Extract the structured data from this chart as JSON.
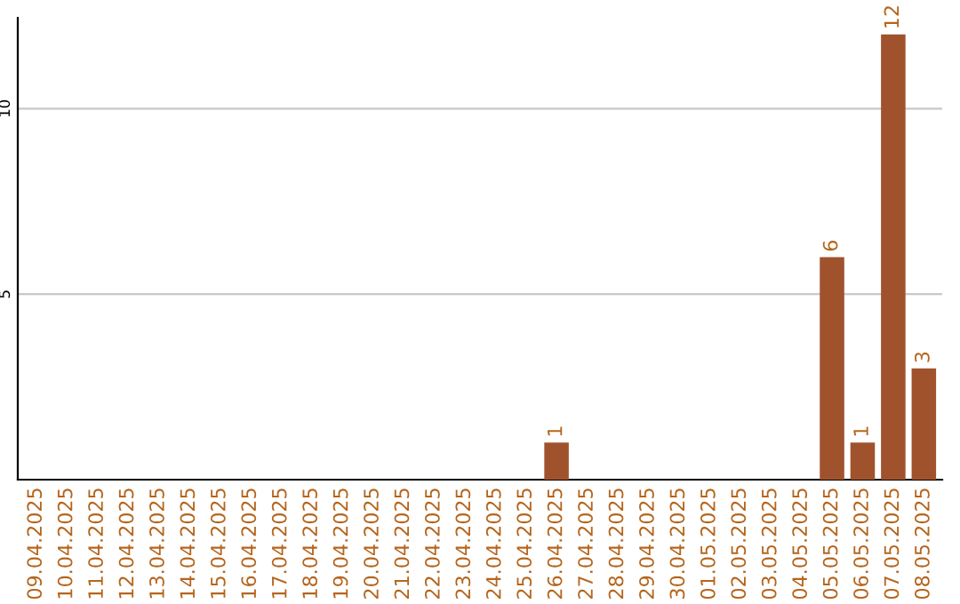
{
  "chart_data": {
    "type": "bar",
    "categories": [
      "09.04.2025",
      "10.04.2025",
      "11.04.2025",
      "12.04.2025",
      "13.04.2025",
      "14.04.2025",
      "15.04.2025",
      "16.04.2025",
      "17.04.2025",
      "18.04.2025",
      "19.04.2025",
      "20.04.2025",
      "21.04.2025",
      "22.04.2025",
      "23.04.2025",
      "24.04.2025",
      "25.04.2025",
      "26.04.2025",
      "27.04.2025",
      "28.04.2025",
      "29.04.2025",
      "30.04.2025",
      "01.05.2025",
      "02.05.2025",
      "03.05.2025",
      "04.05.2025",
      "05.05.2025",
      "06.05.2025",
      "07.05.2025",
      "08.05.2025"
    ],
    "values": [
      0,
      0,
      0,
      0,
      0,
      0,
      0,
      0,
      0,
      0,
      0,
      0,
      0,
      0,
      0,
      0,
      0,
      1,
      0,
      0,
      0,
      0,
      0,
      0,
      0,
      0,
      6,
      1,
      12,
      3
    ],
    "value_labels": [
      null,
      null,
      null,
      null,
      null,
      null,
      null,
      null,
      null,
      null,
      null,
      null,
      null,
      null,
      null,
      null,
      null,
      "1",
      null,
      null,
      null,
      null,
      null,
      null,
      null,
      null,
      "6",
      "1",
      "12",
      "3"
    ],
    "color": "#a0522d",
    "ylim": [
      0,
      12.45
    ],
    "yticks": [
      5,
      10
    ],
    "grid": "y"
  }
}
